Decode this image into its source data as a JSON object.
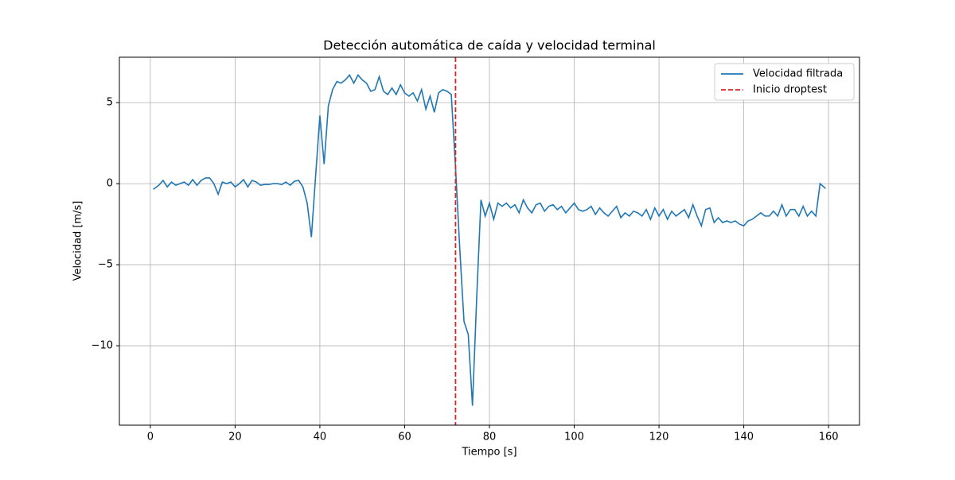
{
  "chart_data": {
    "type": "line",
    "title": "Detección automática de caída y velocidad terminal",
    "x_label": "Tiempo [s]",
    "y_label": "Velocidad [m/s]",
    "x": [
      0.7,
      2,
      3,
      4,
      5,
      6,
      7,
      8,
      9,
      10,
      11,
      12,
      13,
      14,
      15,
      16,
      17,
      18,
      19,
      20,
      21,
      22,
      23,
      24,
      25,
      26,
      27,
      28,
      29,
      30,
      31,
      32,
      33,
      34,
      35,
      36,
      37,
      38,
      39,
      40,
      41,
      42,
      43,
      44,
      45,
      46,
      47,
      48,
      49,
      50,
      51,
      52,
      53,
      54,
      55,
      56,
      57,
      58,
      59,
      60,
      61,
      62,
      63,
      64,
      65,
      66,
      67,
      68,
      69,
      70,
      71,
      72,
      73,
      74,
      75,
      76,
      77,
      78,
      79,
      80,
      81,
      82,
      83,
      84,
      85,
      86,
      87,
      88,
      89,
      90,
      91,
      92,
      93,
      94,
      95,
      96,
      97,
      98,
      99,
      100,
      101,
      102,
      103,
      104,
      105,
      106,
      107,
      108,
      109,
      110,
      111,
      112,
      113,
      114,
      115,
      116,
      117,
      118,
      119,
      120,
      121,
      122,
      123,
      124,
      125,
      126,
      127,
      128,
      129,
      130,
      131,
      132,
      133,
      134,
      135,
      136,
      137,
      138,
      139,
      140,
      141,
      142,
      143,
      144,
      145,
      146,
      147,
      148,
      149,
      150,
      151,
      152,
      153,
      154,
      155,
      156,
      157,
      158,
      159.3
    ],
    "series": [
      {
        "name": "Velocidad filtrada",
        "color": "#1f77b4",
        "values": [
          -0.35,
          -0.1,
          0.2,
          -0.2,
          0.1,
          -0.1,
          0.0,
          0.1,
          -0.1,
          0.25,
          -0.1,
          0.2,
          0.35,
          0.35,
          0.0,
          -0.65,
          0.1,
          0.0,
          0.1,
          -0.2,
          0.0,
          0.25,
          -0.2,
          0.2,
          0.1,
          -0.1,
          -0.05,
          -0.05,
          0.0,
          0.0,
          -0.05,
          0.1,
          -0.1,
          0.15,
          0.2,
          -0.2,
          -1.2,
          -3.3,
          0.5,
          4.2,
          1.2,
          4.8,
          5.8,
          6.3,
          6.2,
          6.4,
          6.7,
          6.2,
          6.7,
          6.4,
          6.2,
          5.7,
          5.8,
          6.6,
          5.7,
          5.5,
          5.9,
          5.5,
          6.1,
          5.6,
          5.4,
          5.6,
          5.1,
          5.8,
          4.6,
          5.4,
          4.4,
          5.6,
          5.8,
          5.7,
          5.5,
          1.0,
          -4.0,
          -8.5,
          -9.3,
          -13.7,
          -7.0,
          -1.0,
          -2.0,
          -1.2,
          -2.2,
          -1.2,
          -1.4,
          -1.2,
          -1.5,
          -1.3,
          -1.8,
          -1.0,
          -1.5,
          -1.8,
          -1.3,
          -1.2,
          -1.7,
          -1.4,
          -1.3,
          -1.6,
          -1.4,
          -1.8,
          -1.5,
          -1.2,
          -1.6,
          -1.7,
          -1.6,
          -1.4,
          -1.9,
          -1.5,
          -1.8,
          -2.0,
          -1.7,
          -1.4,
          -2.1,
          -1.8,
          -2.0,
          -1.7,
          -1.8,
          -2.0,
          -1.6,
          -2.2,
          -1.5,
          -2.0,
          -1.6,
          -2.2,
          -1.7,
          -2.0,
          -1.8,
          -1.6,
          -2.1,
          -1.3,
          -2.0,
          -2.6,
          -1.6,
          -1.5,
          -2.4,
          -2.1,
          -2.4,
          -2.3,
          -2.4,
          -2.3,
          -2.5,
          -2.6,
          -2.3,
          -2.2,
          -2.0,
          -1.8,
          -2.0,
          -2.0,
          -1.7,
          -2.0,
          -1.3,
          -2.0,
          -1.6,
          -1.6,
          -2.0,
          -1.4,
          -2.0,
          -1.7,
          -2.0,
          0.0,
          -0.3
        ]
      }
    ],
    "vlines": [
      {
        "name": "Inicio droptest",
        "color": "#d62728",
        "x": 72,
        "style": "dashed"
      }
    ],
    "xlim": [
      -7.3,
      167.3
    ],
    "ylim": [
      -14.9,
      7.8
    ],
    "xticks": [
      0,
      20,
      40,
      60,
      80,
      100,
      120,
      140,
      160
    ],
    "yticks": [
      {
        "value": -10,
        "label": "−10"
      },
      {
        "value": -5,
        "label": "−5"
      },
      0,
      5
    ],
    "grid": true,
    "legend": "upper right"
  }
}
